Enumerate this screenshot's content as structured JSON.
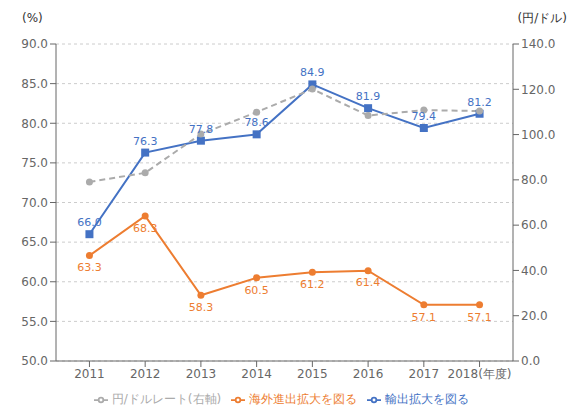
{
  "chart_data": {
    "type": "line",
    "ylabel": "(%)",
    "y2label": "(円/ドル)",
    "x": [
      2011,
      2012,
      2013,
      2014,
      2015,
      2016,
      2017,
      2018
    ],
    "xlim": [
      2010.4,
      2018.6
    ],
    "xticks": [
      2011,
      2012,
      2013,
      2014,
      2015,
      2016,
      2017,
      {
        "value": 2018,
        "label": "2018(年度)"
      }
    ],
    "ylim": [
      50.0,
      90.0
    ],
    "yticks": [
      {
        "value": 50.0,
        "label": "50.0"
      },
      {
        "value": 55.0,
        "label": "55.0"
      },
      {
        "value": 60.0,
        "label": "60.0"
      },
      {
        "value": 65.0,
        "label": "65.0"
      },
      {
        "value": 70.0,
        "label": "70.0"
      },
      {
        "value": 75.0,
        "label": "75.0"
      },
      {
        "value": 80.0,
        "label": "80.0"
      },
      {
        "value": 85.0,
        "label": "85.0"
      },
      {
        "value": 90.0,
        "label": "90.0"
      }
    ],
    "y2lim": [
      0.0,
      140.0
    ],
    "y2ticks": [
      {
        "value": 0.0,
        "label": "0.0"
      },
      {
        "value": 20.0,
        "label": "20.0"
      },
      {
        "value": 40.0,
        "label": "40.0"
      },
      {
        "value": 60.0,
        "label": "60.0"
      },
      {
        "value": 80.0,
        "label": "80.0"
      },
      {
        "value": 100.0,
        "label": "100.0"
      },
      {
        "value": 120.0,
        "label": "120.0"
      },
      {
        "value": 140.0,
        "label": "140.0"
      }
    ],
    "grid": true,
    "legend": "bottom",
    "series": [
      {
        "name": "輸出拡大を図る",
        "color": "#4472C4",
        "marker": "square",
        "line_style": "solid",
        "values": [
          66.0,
          76.3,
          77.8,
          78.6,
          84.9,
          81.9,
          79.4,
          81.2
        ],
        "data_labels": true,
        "value_labels": [
          "66.0",
          "76.3",
          "77.8",
          "78.6",
          "84.9",
          "81.9",
          "79.4",
          "81.2"
        ]
      },
      {
        "name": "海外進出拡大を図る",
        "color": "#ED7D31",
        "marker": "circle",
        "line_style": "solid",
        "values": [
          63.3,
          68.3,
          58.3,
          60.5,
          61.2,
          61.4,
          57.1,
          57.1
        ],
        "data_labels": true,
        "value_labels": [
          "63.3",
          "68.3",
          "58.3",
          "60.5",
          "61.2",
          "61.4",
          "57.1",
          "57.1"
        ]
      },
      {
        "name": "円/ドルレート(右軸)",
        "color": "#ABABAB",
        "marker": "circle",
        "line_style": "dashed",
        "axis": "y2",
        "values": [
          79.1,
          83.1,
          100.2,
          109.9,
          120.1,
          108.4,
          110.8,
          110.4
        ]
      }
    ]
  }
}
